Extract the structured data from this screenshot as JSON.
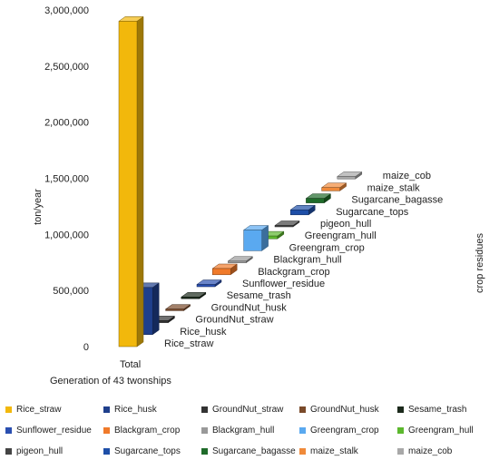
{
  "chart_data": {
    "type": "bar",
    "ylabel": "ton/year",
    "zlabel": "crop residues",
    "xlabel": "Generation of 43 twonships",
    "category": "Total",
    "ylim": [
      0,
      3000000
    ],
    "yticks": [
      0,
      500000,
      1000000,
      1500000,
      2000000,
      2500000,
      3000000
    ],
    "ytick_labels": [
      "0",
      "500,000",
      "1,000,000",
      "1,500,000",
      "2,000,000",
      "2,500,000",
      "3,000,000"
    ],
    "series": [
      {
        "name": "Rice_straw",
        "value": 2900000,
        "color": "#f2b80c"
      },
      {
        "name": "Rice_husk",
        "value": 420000,
        "color": "#1f3f8c"
      },
      {
        "name": "GroundNut_straw",
        "value": 18000,
        "color": "#333333"
      },
      {
        "name": "GroundNut_husk",
        "value": 14000,
        "color": "#7a4a2a"
      },
      {
        "name": "Sesame_trash",
        "value": 15000,
        "color": "#1c2a1c"
      },
      {
        "name": "Sunflower_residue",
        "value": 20000,
        "color": "#2a4fb0"
      },
      {
        "name": "Blackgram_crop",
        "value": 55000,
        "color": "#f07a2a"
      },
      {
        "name": "Blackgram_hull",
        "value": 15000,
        "color": "#999999"
      },
      {
        "name": "Greengram_crop",
        "value": 185000,
        "color": "#5aa9f0"
      },
      {
        "name": "Greengram_hull",
        "value": 25000,
        "color": "#5cb82e"
      },
      {
        "name": "pigeon_hull",
        "value": 12000,
        "color": "#444444"
      },
      {
        "name": "Sugarcane_tops",
        "value": 45000,
        "color": "#1e4fa8"
      },
      {
        "name": "Sugarcane_bagasse",
        "value": 40000,
        "color": "#1f6b2a"
      },
      {
        "name": "maize_stalk",
        "value": 30000,
        "color": "#f08a3a"
      },
      {
        "name": "maize_cob",
        "value": 22000,
        "color": "#a8a8a8"
      }
    ]
  }
}
